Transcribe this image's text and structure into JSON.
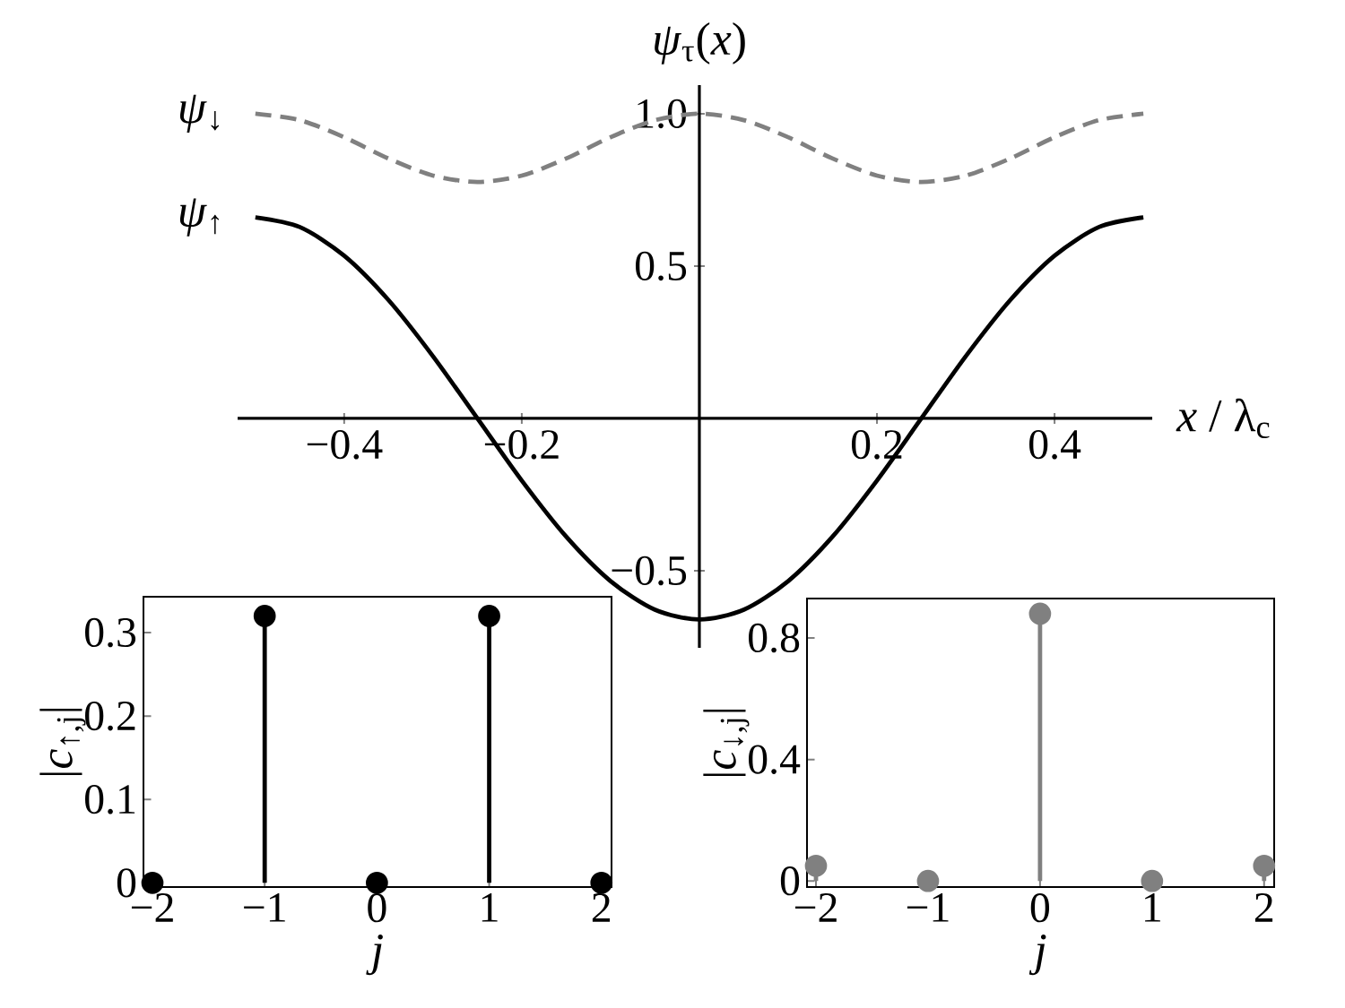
{
  "chart_data": [
    {
      "type": "line",
      "ylabel": "*ψ*$_{τ}$(*x*)",
      "xlabel": "*x* / λ$_{c}$",
      "x": [
        -0.5,
        -0.45,
        -0.4,
        -0.35,
        -0.3,
        -0.25,
        -0.2,
        -0.15,
        -0.1,
        -0.05,
        0,
        0.05,
        0.1,
        0.15,
        0.2,
        0.25,
        0.3,
        0.35,
        0.4,
        0.45,
        0.5
      ],
      "series": [
        {
          "name": "*ψ*$_{↓}$",
          "color": "#808080",
          "line_style": "dashed",
          "values": [
            1.0,
            0.979,
            0.923,
            0.853,
            0.797,
            0.776,
            0.797,
            0.853,
            0.923,
            0.979,
            1.0,
            0.979,
            0.923,
            0.853,
            0.797,
            0.776,
            0.797,
            0.853,
            0.923,
            0.979,
            1.0
          ]
        },
        {
          "name": "*ψ*$_{↑}$",
          "color": "#000000",
          "line_style": "solid",
          "values": [
            0.66,
            0.628,
            0.534,
            0.388,
            0.204,
            0,
            -0.204,
            -0.388,
            -0.534,
            -0.628,
            -0.66,
            -0.628,
            -0.534,
            -0.388,
            -0.204,
            0,
            0.204,
            0.388,
            0.534,
            0.628,
            0.66
          ]
        }
      ],
      "xlim": [
        -0.52,
        0.51
      ],
      "ylim": [
        -0.753,
        1.094
      ],
      "xticks": [
        {
          "value": -0.4,
          "label": "−0.4"
        },
        {
          "value": -0.2,
          "label": "−0.2"
        },
        0.2,
        0.4
      ],
      "yticks": [
        {
          "value": -0.5,
          "label": "−0.5"
        },
        0.5,
        {
          "value": 1.0,
          "label": "1.0"
        }
      ]
    },
    {
      "type": "lollipop",
      "xlabel": "*j*",
      "ylabel": "|*c*$_{↑,j}$|",
      "x": [
        -2,
        -1,
        0,
        1,
        2
      ],
      "values": [
        0,
        0.32,
        0,
        0.32,
        0
      ],
      "color": "#000000",
      "marker": "circle",
      "xlim": [
        -2.08,
        2.09
      ],
      "ylim": [
        -0.005,
        0.343
      ],
      "xticks": [
        {
          "value": -2,
          "label": "−2"
        },
        {
          "value": -1,
          "label": "−1"
        },
        0,
        1,
        2
      ],
      "yticks": [
        0,
        0.1,
        0.2,
        0.3
      ]
    },
    {
      "type": "lollipop",
      "xlabel": "*j*",
      "ylabel": "|*c*$_{↓,j}$|",
      "x": [
        -2,
        -1,
        0,
        1,
        2
      ],
      "values": [
        0.05,
        0,
        0.88,
        0,
        0.05
      ],
      "color": "#808080",
      "marker": "circle",
      "xlim": [
        -2.08,
        2.09
      ],
      "ylim": [
        -0.02,
        0.93
      ],
      "xticks": [
        {
          "value": -2,
          "label": "−2"
        },
        {
          "value": -1,
          "label": "−1"
        },
        0,
        1,
        2
      ],
      "yticks": [
        0,
        0.4,
        0.8
      ]
    }
  ]
}
